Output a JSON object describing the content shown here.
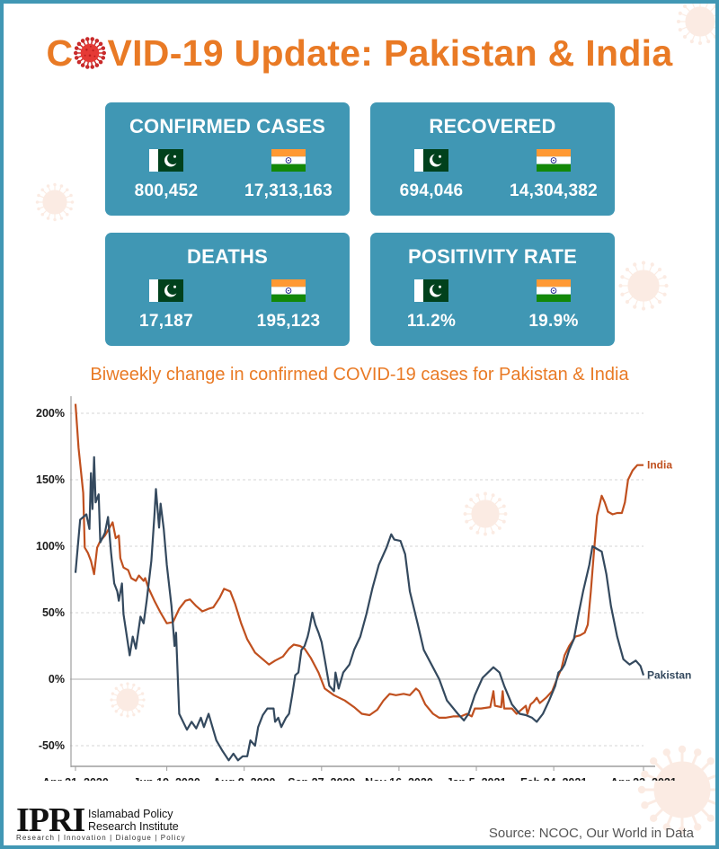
{
  "header": {
    "title_prefix": "C",
    "title_rest": "VID-19 Update: Pakistan & India",
    "title_icon": "coronavirus-icon"
  },
  "cards": [
    {
      "title": "CONFIRMED CASES",
      "pakistan": "800,452",
      "india": "17,313,163"
    },
    {
      "title": "RECOVERED",
      "pakistan": "694,046",
      "india": "14,304,382"
    },
    {
      "title": "DEATHS",
      "pakistan": "17,187",
      "india": "195,123"
    },
    {
      "title": "POSITIVITY RATE",
      "pakistan": "11.2%",
      "india": "19.9%"
    }
  ],
  "flags": {
    "pakistan": "pakistan-flag-icon",
    "india": "india-flag-icon"
  },
  "colors": {
    "accent": "#e97a25",
    "card": "#4097b4",
    "border": "#4197b4",
    "pakistan_line": "#34495e",
    "india_line": "#c0501f"
  },
  "chart_data": {
    "type": "line",
    "title": "Biweekly change in confirmed COVID-19 cases for Pakistan & India",
    "xlabel": "",
    "ylabel": "",
    "x_unit": "days since Apr 21, 2020",
    "x_range": [
      0,
      367
    ],
    "ylim": [
      -60,
      210
    ],
    "yticks": [
      200,
      150,
      100,
      50,
      0,
      -50
    ],
    "ytick_labels": [
      "200%",
      "150%",
      "100%",
      "50%",
      "0%",
      "-50%"
    ],
    "xticks": [
      0,
      59,
      109,
      159,
      209,
      259,
      309,
      367
    ],
    "xtick_labels": [
      "Apr 21, 2020",
      "Jun 19, 2020",
      "Aug 8, 2020",
      "Sep 27, 2020",
      "Nov 16, 2020",
      "Jan 5, 2021",
      "Feb 24, 2021",
      "Apr 23, 2021"
    ],
    "grid": "horizontal dashed",
    "legend": "inline labels at line ends (right)",
    "series": [
      {
        "name": "Pakistan",
        "color": "#34495e",
        "points": [
          [
            0,
            80
          ],
          [
            3,
            120
          ],
          [
            7,
            124
          ],
          [
            9,
            113
          ],
          [
            10,
            155
          ],
          [
            11,
            128
          ],
          [
            12,
            167
          ],
          [
            13,
            133
          ],
          [
            15,
            139
          ],
          [
            16,
            103
          ],
          [
            19,
            110
          ],
          [
            21,
            122
          ],
          [
            23,
            95
          ],
          [
            25,
            72
          ],
          [
            27,
            66
          ],
          [
            28,
            59
          ],
          [
            30,
            72
          ],
          [
            31,
            49
          ],
          [
            35,
            18
          ],
          [
            37,
            32
          ],
          [
            39,
            23
          ],
          [
            42,
            47
          ],
          [
            44,
            42
          ],
          [
            46,
            59
          ],
          [
            49,
            89
          ],
          [
            51,
            123
          ],
          [
            52,
            143
          ],
          [
            54,
            114
          ],
          [
            55,
            132
          ],
          [
            57,
            113
          ],
          [
            59,
            86
          ],
          [
            62,
            55
          ],
          [
            64,
            25
          ],
          [
            65,
            35
          ],
          [
            67,
            -26
          ],
          [
            72,
            -38
          ],
          [
            75,
            -32
          ],
          [
            78,
            -37
          ],
          [
            81,
            -29
          ],
          [
            83,
            -36
          ],
          [
            86,
            -26
          ],
          [
            91,
            -46
          ],
          [
            95,
            -54
          ],
          [
            99,
            -61
          ],
          [
            102,
            -56
          ],
          [
            105,
            -61
          ],
          [
            108,
            -58
          ],
          [
            111,
            -58
          ],
          [
            113,
            -46
          ],
          [
            116,
            -50
          ],
          [
            118,
            -36
          ],
          [
            121,
            -27
          ],
          [
            124,
            -22
          ],
          [
            128,
            -22
          ],
          [
            129,
            -32
          ],
          [
            131,
            -29
          ],
          [
            133,
            -36
          ],
          [
            136,
            -29
          ],
          [
            138,
            -26
          ],
          [
            140,
            -12
          ],
          [
            142,
            3
          ],
          [
            144,
            5
          ],
          [
            146,
            22
          ],
          [
            148,
            25
          ],
          [
            150,
            32
          ],
          [
            151,
            37
          ],
          [
            153,
            50
          ],
          [
            155,
            41
          ],
          [
            157,
            35
          ],
          [
            159,
            28
          ],
          [
            161,
            15
          ],
          [
            164,
            -5
          ],
          [
            167,
            -9
          ],
          [
            168,
            5
          ],
          [
            170,
            -7
          ],
          [
            173,
            5
          ],
          [
            177,
            11
          ],
          [
            180,
            22
          ],
          [
            184,
            32
          ],
          [
            188,
            49
          ],
          [
            192,
            69
          ],
          [
            196,
            86
          ],
          [
            201,
            99
          ],
          [
            204,
            109
          ],
          [
            206,
            105
          ],
          [
            210,
            104
          ],
          [
            213,
            94
          ],
          [
            216,
            66
          ],
          [
            221,
            42
          ],
          [
            225,
            22
          ],
          [
            230,
            11
          ],
          [
            235,
            0
          ],
          [
            240,
            -16
          ],
          [
            247,
            -26
          ],
          [
            251,
            -31
          ],
          [
            254,
            -26
          ],
          [
            258,
            -12
          ],
          [
            263,
            1
          ],
          [
            270,
            9
          ],
          [
            274,
            5
          ],
          [
            277,
            -5
          ],
          [
            282,
            -19
          ],
          [
            287,
            -26
          ],
          [
            291,
            -27
          ],
          [
            295,
            -29
          ],
          [
            298,
            -32
          ],
          [
            302,
            -26
          ],
          [
            306,
            -16
          ],
          [
            310,
            -5
          ],
          [
            312,
            5
          ],
          [
            314,
            7
          ],
          [
            316,
            11
          ],
          [
            319,
            22
          ],
          [
            322,
            30
          ],
          [
            325,
            49
          ],
          [
            328,
            66
          ],
          [
            332,
            86
          ],
          [
            334,
            100
          ],
          [
            337,
            98
          ],
          [
            340,
            96
          ],
          [
            343,
            79
          ],
          [
            346,
            55
          ],
          [
            350,
            32
          ],
          [
            354,
            15
          ],
          [
            358,
            11
          ],
          [
            362,
            14
          ],
          [
            365,
            10
          ],
          [
            367,
            3
          ]
        ]
      },
      {
        "name": "India",
        "color": "#c0501f",
        "points": [
          [
            0,
            207
          ],
          [
            2,
            174
          ],
          [
            5,
            140
          ],
          [
            6,
            99
          ],
          [
            8,
            95
          ],
          [
            10,
            89
          ],
          [
            12,
            79
          ],
          [
            14,
            99
          ],
          [
            16,
            104
          ],
          [
            19,
            108
          ],
          [
            22,
            114
          ],
          [
            24,
            118
          ],
          [
            26,
            106
          ],
          [
            28,
            108
          ],
          [
            29,
            91
          ],
          [
            31,
            84
          ],
          [
            34,
            82
          ],
          [
            36,
            76
          ],
          [
            39,
            74
          ],
          [
            41,
            78
          ],
          [
            44,
            74
          ],
          [
            45,
            76
          ],
          [
            47,
            69
          ],
          [
            51,
            59
          ],
          [
            55,
            50
          ],
          [
            59,
            42
          ],
          [
            63,
            43
          ],
          [
            67,
            53
          ],
          [
            71,
            59
          ],
          [
            74,
            60
          ],
          [
            78,
            55
          ],
          [
            82,
            51
          ],
          [
            86,
            53
          ],
          [
            89,
            54
          ],
          [
            93,
            61
          ],
          [
            96,
            68
          ],
          [
            100,
            66
          ],
          [
            103,
            57
          ],
          [
            107,
            42
          ],
          [
            111,
            30
          ],
          [
            116,
            20
          ],
          [
            121,
            15
          ],
          [
            125,
            11
          ],
          [
            129,
            14
          ],
          [
            134,
            17
          ],
          [
            138,
            23
          ],
          [
            141,
            26
          ],
          [
            145,
            25
          ],
          [
            148,
            23
          ],
          [
            152,
            16
          ],
          [
            157,
            5
          ],
          [
            161,
            -7
          ],
          [
            167,
            -12
          ],
          [
            174,
            -16
          ],
          [
            180,
            -21
          ],
          [
            185,
            -26
          ],
          [
            190,
            -27
          ],
          [
            195,
            -23
          ],
          [
            199,
            -16
          ],
          [
            203,
            -11
          ],
          [
            207,
            -12
          ],
          [
            212,
            -11
          ],
          [
            216,
            -12
          ],
          [
            220,
            -7
          ],
          [
            222,
            -9
          ],
          [
            226,
            -19
          ],
          [
            231,
            -26
          ],
          [
            235,
            -29
          ],
          [
            239,
            -29
          ],
          [
            244,
            -28
          ],
          [
            249,
            -28
          ],
          [
            253,
            -26
          ],
          [
            256,
            -28
          ],
          [
            258,
            -22
          ],
          [
            262,
            -22
          ],
          [
            268,
            -21
          ],
          [
            270,
            -9
          ],
          [
            271,
            -20
          ],
          [
            275,
            -21
          ],
          [
            276,
            -9
          ],
          [
            277,
            -22
          ],
          [
            282,
            -22
          ],
          [
            285,
            -26
          ],
          [
            289,
            -22
          ],
          [
            291,
            -20
          ],
          [
            292,
            -26
          ],
          [
            294,
            -19
          ],
          [
            296,
            -17
          ],
          [
            298,
            -14
          ],
          [
            300,
            -18
          ],
          [
            304,
            -14
          ],
          [
            308,
            -9
          ],
          [
            311,
            0
          ],
          [
            314,
            8
          ],
          [
            316,
            18
          ],
          [
            319,
            25
          ],
          [
            323,
            32
          ],
          [
            326,
            33
          ],
          [
            329,
            35
          ],
          [
            331,
            41
          ],
          [
            333,
            66
          ],
          [
            335,
            96
          ],
          [
            337,
            123
          ],
          [
            340,
            138
          ],
          [
            342,
            133
          ],
          [
            344,
            126
          ],
          [
            347,
            124
          ],
          [
            350,
            125
          ],
          [
            353,
            125
          ],
          [
            355,
            133
          ],
          [
            357,
            150
          ],
          [
            360,
            157
          ],
          [
            363,
            161
          ],
          [
            366,
            161
          ],
          [
            367,
            161
          ]
        ]
      }
    ]
  },
  "footer": {
    "logo_text": "IPRI",
    "org_line1": "Islamabad Policy",
    "org_line2": "Research Institute",
    "tagline": "Research | Innovation | Dialogue | Policy",
    "source": "Source: NCOC, Our World in Data"
  }
}
